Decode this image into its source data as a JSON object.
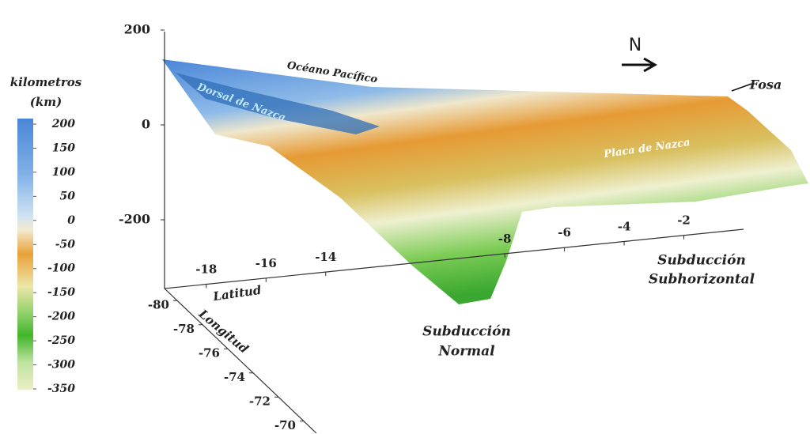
{
  "chart_data": {
    "type": "surface",
    "colorbar": {
      "title": "kilometros",
      "unit": "(km)",
      "lim": [
        -350,
        200
      ],
      "ticks": [
        200,
        150,
        100,
        50,
        0,
        -50,
        -100,
        -150,
        -200,
        -250,
        -300,
        -350
      ]
    },
    "zlim": [
      -345,
      200
    ],
    "zticks": [
      200,
      0,
      -200
    ],
    "xlabel": "Latitud",
    "xlim": [
      -19.4,
      0
    ],
    "xticks": [
      -18,
      -16,
      -14,
      -8,
      -6,
      -4,
      -2
    ],
    "ylabel": "Longitud",
    "ylim": [
      -81,
      -69
    ],
    "yticks": [
      -80,
      -78,
      -76,
      -74,
      -72,
      -70
    ],
    "annotations": {
      "ocean": "Océano Pacífico",
      "ridge": "Dorsal de Nazca",
      "plate": "Placa de Nazca",
      "trench": "Fosa",
      "north": "N",
      "normal": [
        "Subducción",
        "Normal"
      ],
      "flat": [
        "Subducción",
        "Subhorizontal"
      ]
    }
  }
}
